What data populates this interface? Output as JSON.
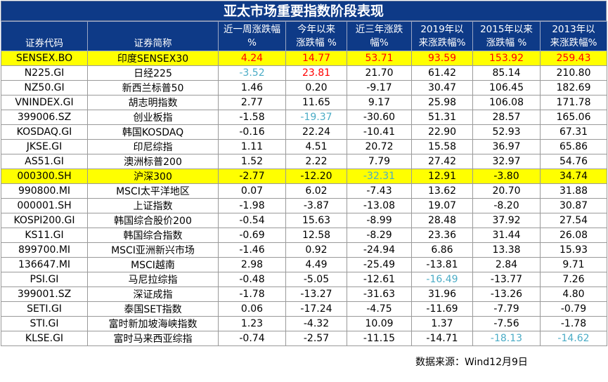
{
  "title": "亚太市场重要指数阶段表现",
  "headers": [
    "证券代码",
    "证券简称",
    "近一周涨跌幅%",
    "今年以来涨跌幅 %",
    "近三年涨跌幅%",
    "2019年以来涨跌幅%",
    "2015年以来涨跌幅 %",
    "2013年以来涨跌幅%"
  ],
  "headers_lines": [
    [
      "证券代码",
      ""
    ],
    [
      "证券简称",
      ""
    ],
    [
      "近一周涨跌幅",
      "%"
    ],
    [
      "今年以来",
      "涨跌幅 %"
    ],
    [
      "近三年涨跌",
      "幅%"
    ],
    [
      "2019年以",
      "来涨跌幅%"
    ],
    [
      "2015年以来",
      "涨跌幅 %"
    ],
    [
      "2013年以",
      "来涨跌幅%"
    ]
  ],
  "rows": [
    {
      "code": "SENSEX.BO",
      "name": "印度SENSEX30",
      "vals": [
        "4.24",
        "14.77",
        "53.71",
        "93.59",
        "153.92",
        "259.43"
      ],
      "hl": true,
      "colors": [
        "red",
        "red",
        "red",
        "red",
        "red",
        "red"
      ]
    },
    {
      "code": "N225.GI",
      "name": "日经225",
      "vals": [
        "-3.52",
        "23.81",
        "21.70",
        "61.42",
        "85.14",
        "210.80"
      ],
      "hl": false,
      "colors": [
        "teal",
        "red",
        "",
        "",
        "",
        ""
      ]
    },
    {
      "code": "NZ50.GI",
      "name": "新西兰标普50",
      "vals": [
        "1.46",
        "0.20",
        "-9.17",
        "30.47",
        "106.45",
        "182.69"
      ],
      "hl": false,
      "colors": [
        "",
        "",
        "",
        "",
        "",
        ""
      ]
    },
    {
      "code": "VNINDEX.GI",
      "name": "胡志明指数",
      "vals": [
        "2.77",
        "11.65",
        "9.17",
        "25.98",
        "106.08",
        "171.78"
      ],
      "hl": false,
      "colors": [
        "",
        "",
        "",
        "",
        "",
        ""
      ]
    },
    {
      "code": "399006.SZ",
      "name": "创业板指",
      "vals": [
        "-1.58",
        "-19.37",
        "-30.60",
        "51.31",
        "28.57",
        "165.06"
      ],
      "hl": false,
      "colors": [
        "",
        "teal",
        "",
        "",
        "",
        ""
      ]
    },
    {
      "code": "KOSDAQ.GI",
      "name": "韩国KOSDAQ",
      "vals": [
        "-0.16",
        "22.24",
        "-10.41",
        "22.90",
        "52.93",
        "67.31"
      ],
      "hl": false,
      "colors": [
        "",
        "",
        "",
        "",
        "",
        ""
      ]
    },
    {
      "code": "JKSE.GI",
      "name": "印尼综指",
      "vals": [
        "1.11",
        "4.51",
        "20.72",
        "15.58",
        "36.97",
        "65.86"
      ],
      "hl": false,
      "colors": [
        "",
        "",
        "",
        "",
        "",
        ""
      ]
    },
    {
      "code": "AS51.GI",
      "name": "澳洲标普200",
      "vals": [
        "1.52",
        "2.22",
        "7.79",
        "27.42",
        "32.97",
        "54.76"
      ],
      "hl": false,
      "colors": [
        "",
        "",
        "",
        "",
        "",
        ""
      ]
    },
    {
      "code": "000300.SH",
      "name": "沪深300",
      "vals": [
        "-2.77",
        "-12.20",
        "-32.31",
        "12.91",
        "-3.80",
        "34.74"
      ],
      "hl": true,
      "colors": [
        "",
        "",
        "teal",
        "",
        "",
        ""
      ]
    },
    {
      "code": "990800.MI",
      "name": "MSCI太平洋地区",
      "vals": [
        "0.07",
        "6.02",
        "-7.43",
        "13.62",
        "20.70",
        "31.88"
      ],
      "hl": false,
      "colors": [
        "",
        "",
        "",
        "",
        "",
        ""
      ]
    },
    {
      "code": "000001.SH",
      "name": "上证指数",
      "vals": [
        "-1.98",
        "-3.87",
        "-13.08",
        "19.07",
        "-8.20",
        "30.87"
      ],
      "hl": false,
      "colors": [
        "",
        "",
        "",
        "",
        "",
        ""
      ]
    },
    {
      "code": "KOSPI200.GI",
      "name": "韩国综合股价200",
      "vals": [
        "-0.54",
        "15.63",
        "-8.99",
        "28.48",
        "37.92",
        "27.54"
      ],
      "hl": false,
      "colors": [
        "",
        "",
        "",
        "",
        "",
        ""
      ]
    },
    {
      "code": "KS11.GI",
      "name": "韩国综合指数",
      "vals": [
        "-0.69",
        "12.58",
        "-8.29",
        "23.36",
        "31.44",
        "26.08"
      ],
      "hl": false,
      "colors": [
        "",
        "",
        "",
        "",
        "",
        ""
      ]
    },
    {
      "code": "899700.MI",
      "name": "MSCI亚洲新兴市场",
      "vals": [
        "-1.46",
        "0.92",
        "-24.94",
        "6.86",
        "13.38",
        "15.93"
      ],
      "hl": false,
      "colors": [
        "",
        "",
        "",
        "",
        "",
        ""
      ]
    },
    {
      "code": "136647.MI",
      "name": "MSCI越南",
      "vals": [
        "2.98",
        "4.49",
        "-25.49",
        "-13.81",
        "2.84",
        "9.71"
      ],
      "hl": false,
      "colors": [
        "",
        "",
        "",
        "",
        "",
        ""
      ]
    },
    {
      "code": "PSI.GI",
      "name": "马尼拉综指",
      "vals": [
        "-0.48",
        "-5.05",
        "-12.61",
        "-16.49",
        "-13.77",
        "7.26"
      ],
      "hl": false,
      "colors": [
        "",
        "",
        "",
        "teal",
        "",
        ""
      ]
    },
    {
      "code": "399001.SZ",
      "name": "深证成指",
      "vals": [
        "-1.78",
        "-13.27",
        "-31.63",
        "31.96",
        "-13.26",
        "4.80"
      ],
      "hl": false,
      "colors": [
        "",
        "",
        "",
        "",
        "",
        ""
      ]
    },
    {
      "code": "SETI.GI",
      "name": "泰国SET指数",
      "vals": [
        "0.06",
        "-17.24",
        "-4.75",
        "-11.69",
        "-7.79",
        "-0.79"
      ],
      "hl": false,
      "colors": [
        "",
        "",
        "",
        "",
        "",
        ""
      ]
    },
    {
      "code": "STI.GI",
      "name": "富时新加坡海峡指数",
      "vals": [
        "1.23",
        "-4.32",
        "10.09",
        "1.37",
        "-7.56",
        "-1.78"
      ],
      "hl": false,
      "colors": [
        "",
        "",
        "",
        "",
        "",
        ""
      ]
    },
    {
      "code": "KLSE.GI",
      "name": "富时马来西亚综指",
      "vals": [
        "-0.74",
        "-2.57",
        "-11.15",
        "-14.71",
        "-18.13",
        "-14.62"
      ],
      "hl": false,
      "colors": [
        "",
        "",
        "",
        "",
        "teal",
        "teal"
      ]
    }
  ],
  "source": "数据来源：Wind12月9日",
  "colors": {
    "header_bg": "#0E3A87",
    "highlight": "#FFFF00",
    "red": "#FF0000",
    "teal": "#4BACC6"
  }
}
